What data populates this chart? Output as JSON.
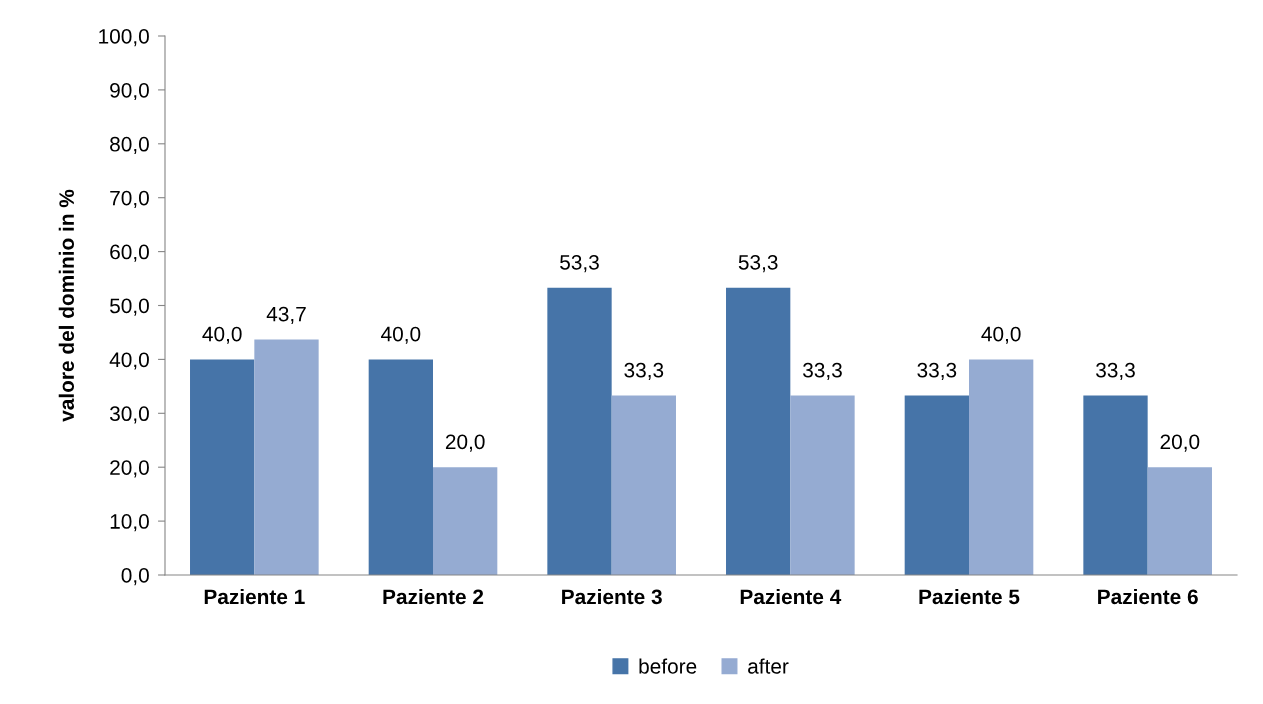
{
  "chart_data": {
    "type": "bar",
    "ylabel": "valore del dominio in %",
    "categories": [
      "Paziente 1",
      "Paziente 2",
      "Paziente 3",
      "Paziente 4",
      "Paziente 5",
      "Paziente 6"
    ],
    "series": [
      {
        "name": "before",
        "color": "#4674a8",
        "values": [
          40.0,
          40.0,
          53.3,
          53.3,
          33.3,
          33.3
        ],
        "value_labels": [
          "40,0",
          "40,0",
          "53,3",
          "53,3",
          "33,3",
          "33,3"
        ]
      },
      {
        "name": "after",
        "color": "#95abd2",
        "values": [
          43.7,
          20.0,
          33.3,
          33.3,
          40.0,
          20.0
        ],
        "value_labels": [
          "43,7",
          "20,0",
          "33,3",
          "33,3",
          "40,0",
          "20,0"
        ]
      }
    ],
    "ylim": [
      0,
      100
    ],
    "yticks": [
      {
        "value": 0,
        "label": "0,0"
      },
      {
        "value": 10,
        "label": "10,0"
      },
      {
        "value": 20,
        "label": "20,0"
      },
      {
        "value": 30,
        "label": "30,0"
      },
      {
        "value": 40,
        "label": "40,0"
      },
      {
        "value": 50,
        "label": "50,0"
      },
      {
        "value": 60,
        "label": "60,0"
      },
      {
        "value": 70,
        "label": "70,0"
      },
      {
        "value": 80,
        "label": "80,0"
      },
      {
        "value": 90,
        "label": "90,0"
      },
      {
        "value": 100,
        "label": "100,0"
      }
    ],
    "grid": false,
    "legend": "bottom"
  }
}
